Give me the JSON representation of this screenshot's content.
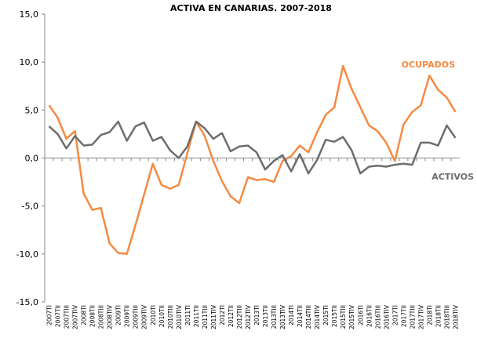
{
  "chart_data": {
    "type": "line",
    "title": "ACTIVA EN CANARIAS. 2007-2018",
    "categories": [
      "2007TI",
      "2007TII",
      "2007TIII",
      "2007TIV",
      "2008TI",
      "2008TII",
      "2008TIII",
      "2008TIV",
      "2009TI",
      "2009TII",
      "2009TIII",
      "2009TIV",
      "2010TI",
      "2010TII",
      "2010TIII",
      "2010TIV",
      "2011TI",
      "2011TII",
      "2011TIII",
      "2011TIV",
      "2012TI",
      "2012TII",
      "2012TIII",
      "2012TIV",
      "2013TI",
      "2013TII",
      "2013TIII",
      "2013TIV",
      "2014TI",
      "2014TII",
      "2014TIII",
      "2014TIV",
      "2015TI",
      "2015TII",
      "2015TIII",
      "2015TIV",
      "2016TI",
      "2016TII",
      "2016TIII",
      "2016TIV",
      "2017TI",
      "2017TII",
      "2017TIII",
      "2017TIV",
      "2018TI",
      "2018TII",
      "2018TIII",
      "2018TIV"
    ],
    "series": [
      {
        "name": "OCUPADOS",
        "color": "#f58a42",
        "values": [
          5.5,
          4.2,
          2.0,
          2.8,
          -3.7,
          -5.4,
          -5.2,
          -8.9,
          -9.9,
          -10.0,
          -7.0,
          -3.8,
          -0.6,
          -2.8,
          -3.2,
          -2.8,
          0.5,
          3.8,
          2.3,
          -0.3,
          -2.4,
          -4.0,
          -4.7,
          -2.0,
          -2.3,
          -2.2,
          -2.5,
          -0.3,
          0.2,
          1.3,
          0.6,
          2.7,
          4.5,
          5.3,
          9.6,
          7.2,
          5.3,
          3.4,
          2.8,
          1.6,
          -0.3,
          3.5,
          4.8,
          5.5,
          8.6,
          7.1,
          6.3,
          4.8
        ]
      },
      {
        "name": "ACTIVOS",
        "color": "#6d6d6d",
        "values": [
          3.3,
          2.5,
          1.0,
          2.3,
          1.3,
          1.4,
          2.4,
          2.7,
          3.8,
          1.8,
          3.3,
          3.7,
          1.8,
          2.2,
          0.8,
          0.0,
          1.2,
          3.8,
          3.1,
          2.0,
          2.6,
          0.7,
          1.2,
          1.3,
          0.6,
          -1.2,
          -0.3,
          0.3,
          -1.4,
          0.4,
          -1.6,
          -0.2,
          1.9,
          1.7,
          2.2,
          0.8,
          -1.6,
          -0.9,
          -0.8,
          -0.9,
          -0.7,
          -0.6,
          -0.7,
          1.6,
          1.6,
          1.3,
          3.4,
          2.1
        ]
      }
    ],
    "ylim": [
      -15,
      15
    ],
    "yticks": [
      {
        "value": -15,
        "label": "-15,0"
      },
      {
        "value": -10,
        "label": "-10,0"
      },
      {
        "value": -5,
        "label": "-5,0"
      },
      {
        "value": 0,
        "label": "0,0"
      },
      {
        "value": 5,
        "label": "5,0"
      },
      {
        "value": 10,
        "label": "10,0"
      },
      {
        "value": 15,
        "label": "15,0"
      }
    ],
    "grid": false
  }
}
